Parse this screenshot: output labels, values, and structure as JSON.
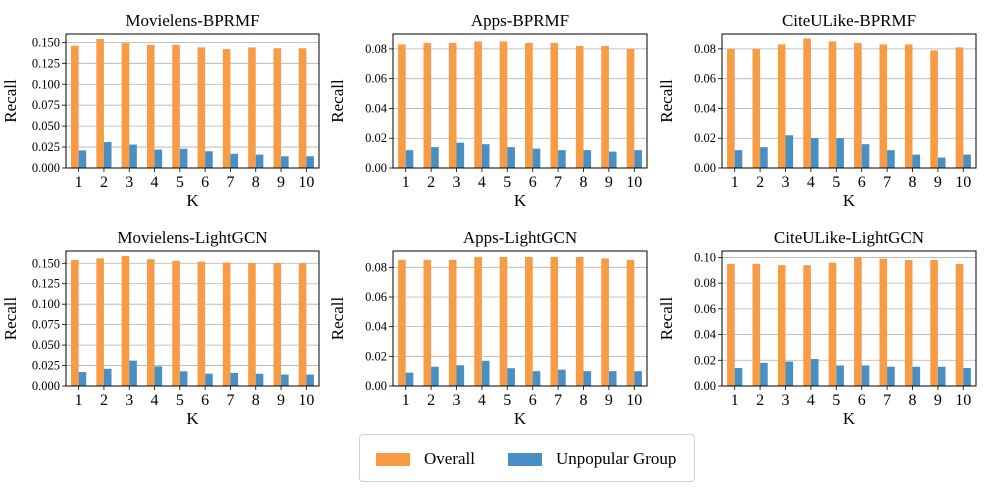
{
  "colors": {
    "overall": "#F89B45",
    "unpopular": "#4A8FC4",
    "grid": "#b0b0b0"
  },
  "legend": {
    "overall_label": "Overall",
    "unpopular_label": "Unpopular Group",
    "placement": "bottom-center"
  },
  "chart_data": [
    {
      "type": "bar",
      "title": "Movielens-BPRMF",
      "xlabel": "K",
      "ylabel": "Recall",
      "categories": [
        "1",
        "2",
        "3",
        "4",
        "5",
        "6",
        "7",
        "8",
        "9",
        "10"
      ],
      "ylim": [
        0,
        0.16
      ],
      "yticks": [
        "0.000",
        "0.025",
        "0.050",
        "0.075",
        "0.100",
        "0.125",
        "0.150"
      ],
      "ytick_values": [
        0,
        0.025,
        0.05,
        0.075,
        0.1,
        0.125,
        0.15
      ],
      "series": [
        {
          "name": "Overall",
          "values": [
            0.146,
            0.154,
            0.149,
            0.147,
            0.147,
            0.144,
            0.142,
            0.144,
            0.143,
            0.143
          ]
        },
        {
          "name": "Unpopular Group",
          "values": [
            0.021,
            0.031,
            0.028,
            0.022,
            0.023,
            0.02,
            0.017,
            0.016,
            0.014,
            0.014
          ]
        }
      ]
    },
    {
      "type": "bar",
      "title": "Apps-BPRMF",
      "xlabel": "K",
      "ylabel": "Recall",
      "categories": [
        "1",
        "2",
        "3",
        "4",
        "5",
        "6",
        "7",
        "8",
        "9",
        "10"
      ],
      "ylim": [
        0,
        0.09
      ],
      "yticks": [
        "0.00",
        "0.02",
        "0.04",
        "0.06",
        "0.08"
      ],
      "ytick_values": [
        0,
        0.02,
        0.04,
        0.06,
        0.08
      ],
      "series": [
        {
          "name": "Overall",
          "values": [
            0.083,
            0.084,
            0.084,
            0.085,
            0.085,
            0.084,
            0.084,
            0.082,
            0.082,
            0.08
          ]
        },
        {
          "name": "Unpopular Group",
          "values": [
            0.012,
            0.014,
            0.017,
            0.016,
            0.014,
            0.013,
            0.012,
            0.012,
            0.011,
            0.012
          ]
        }
      ]
    },
    {
      "type": "bar",
      "title": "CiteULike-BPRMF",
      "xlabel": "K",
      "ylabel": "Recall",
      "categories": [
        "1",
        "2",
        "3",
        "4",
        "5",
        "6",
        "7",
        "8",
        "9",
        "10"
      ],
      "ylim": [
        0,
        0.09
      ],
      "yticks": [
        "0.00",
        "0.02",
        "0.04",
        "0.06",
        "0.08"
      ],
      "ytick_values": [
        0,
        0.02,
        0.04,
        0.06,
        0.08
      ],
      "series": [
        {
          "name": "Overall",
          "values": [
            0.08,
            0.08,
            0.083,
            0.087,
            0.085,
            0.084,
            0.083,
            0.083,
            0.079,
            0.081
          ]
        },
        {
          "name": "Unpopular Group",
          "values": [
            0.012,
            0.014,
            0.022,
            0.02,
            0.02,
            0.016,
            0.012,
            0.009,
            0.007,
            0.009
          ]
        }
      ]
    },
    {
      "type": "bar",
      "title": "Movielens-LightGCN",
      "xlabel": "K",
      "ylabel": "Recall",
      "categories": [
        "1",
        "2",
        "3",
        "4",
        "5",
        "6",
        "7",
        "8",
        "9",
        "10"
      ],
      "ylim": [
        0,
        0.165
      ],
      "yticks": [
        "0.000",
        "0.025",
        "0.050",
        "0.075",
        "0.100",
        "0.125",
        "0.150"
      ],
      "ytick_values": [
        0,
        0.025,
        0.05,
        0.075,
        0.1,
        0.125,
        0.15
      ],
      "series": [
        {
          "name": "Overall",
          "values": [
            0.154,
            0.156,
            0.159,
            0.155,
            0.153,
            0.152,
            0.151,
            0.15,
            0.15,
            0.15
          ]
        },
        {
          "name": "Unpopular Group",
          "values": [
            0.017,
            0.021,
            0.031,
            0.024,
            0.018,
            0.015,
            0.016,
            0.015,
            0.014,
            0.014
          ]
        }
      ]
    },
    {
      "type": "bar",
      "title": "Apps-LightGCN",
      "xlabel": "K",
      "ylabel": "Recall",
      "categories": [
        "1",
        "2",
        "3",
        "4",
        "5",
        "6",
        "7",
        "8",
        "9",
        "10"
      ],
      "ylim": [
        0,
        0.091
      ],
      "yticks": [
        "0.00",
        "0.02",
        "0.04",
        "0.06",
        "0.08"
      ],
      "ytick_values": [
        0,
        0.02,
        0.04,
        0.06,
        0.08
      ],
      "series": [
        {
          "name": "Overall",
          "values": [
            0.085,
            0.085,
            0.085,
            0.087,
            0.087,
            0.087,
            0.087,
            0.087,
            0.086,
            0.085
          ]
        },
        {
          "name": "Unpopular Group",
          "values": [
            0.009,
            0.013,
            0.014,
            0.017,
            0.012,
            0.01,
            0.011,
            0.01,
            0.01,
            0.01
          ]
        }
      ]
    },
    {
      "type": "bar",
      "title": "CiteULike-LightGCN",
      "xlabel": "K",
      "ylabel": "Recall",
      "categories": [
        "1",
        "2",
        "3",
        "4",
        "5",
        "6",
        "7",
        "8",
        "9",
        "10"
      ],
      "ylim": [
        0,
        0.105
      ],
      "yticks": [
        "0.00",
        "0.02",
        "0.04",
        "0.06",
        "0.08",
        "0.10"
      ],
      "ytick_values": [
        0,
        0.02,
        0.04,
        0.06,
        0.08,
        0.1
      ],
      "series": [
        {
          "name": "Overall",
          "values": [
            0.095,
            0.095,
            0.094,
            0.094,
            0.096,
            0.1,
            0.099,
            0.098,
            0.098,
            0.095
          ]
        },
        {
          "name": "Unpopular Group",
          "values": [
            0.014,
            0.018,
            0.019,
            0.021,
            0.016,
            0.016,
            0.015,
            0.015,
            0.015,
            0.014
          ]
        }
      ]
    }
  ]
}
